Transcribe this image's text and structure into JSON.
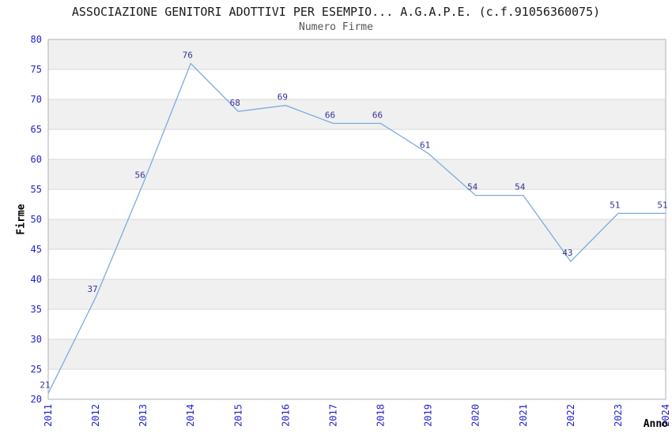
{
  "chart_data": {
    "type": "line",
    "title": "ASSOCIAZIONE GENITORI ADOTTIVI PER ESEMPIO... A.G.A.P.E. (c.f.91056360075)",
    "subtitle": "Numero Firme",
    "xlabel": "Anno",
    "ylabel": "Firme",
    "x": [
      "2011",
      "2012",
      "2013",
      "2014",
      "2015",
      "2016",
      "2017",
      "2018",
      "2019",
      "2020",
      "2021",
      "2022",
      "2023",
      "2024"
    ],
    "values": [
      21,
      37,
      56,
      76,
      68,
      69,
      66,
      66,
      61,
      54,
      54,
      43,
      51,
      51
    ],
    "ylim": [
      20,
      80
    ],
    "ytick_step": 5,
    "yticks": [
      20,
      25,
      30,
      35,
      40,
      45,
      50,
      55,
      60,
      65,
      70,
      75,
      80
    ],
    "grid": true,
    "legend": "none",
    "band_fill": [
      "#f0f0f0",
      "#ffffff"
    ],
    "colors": {
      "line": "#7dabde",
      "data_label": "#333399",
      "tick_label": "#2222cc",
      "gridline": "#d9d9d9",
      "plot_border": "#aab2bd",
      "title": "#1a1a1a",
      "subtitle": "#555555",
      "axis_label": "#000000",
      "background": "#ffffff"
    }
  }
}
